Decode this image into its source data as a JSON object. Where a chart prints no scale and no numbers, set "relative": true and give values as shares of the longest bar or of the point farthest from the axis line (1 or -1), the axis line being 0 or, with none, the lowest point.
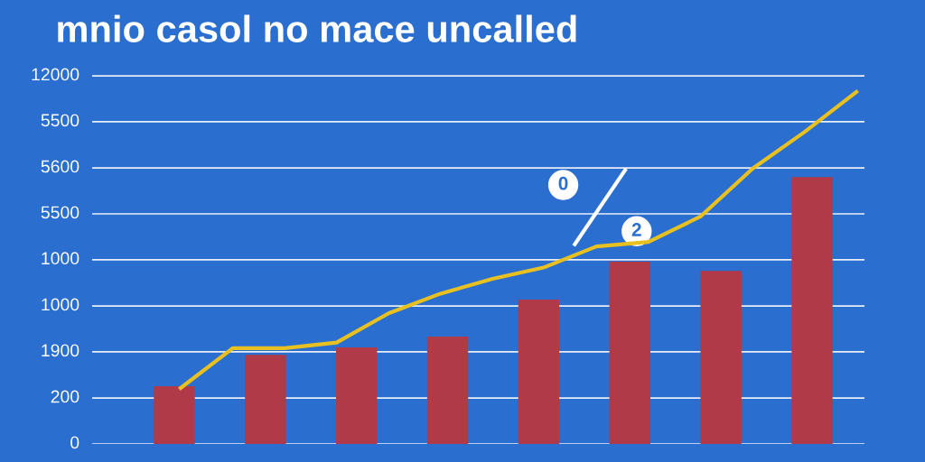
{
  "chart_data": [
    {
      "type": "bar",
      "title": "mnio casol no mace uncalled",
      "relative": true,
      "color": "#b03a48",
      "categories": [
        null,
        null,
        null,
        null,
        null,
        null,
        null,
        null
      ],
      "values": [
        0.216,
        0.334,
        0.362,
        0.402,
        0.541,
        0.683,
        0.648,
        1.0
      ],
      "ref_lines": [
        {
          "axis": "y",
          "value": 0,
          "color": "#e8eef8"
        },
        {
          "axis": "y",
          "value": 0.172,
          "color": "#e8eef8"
        },
        {
          "axis": "y",
          "value": 0.345,
          "color": "#e8eef8"
        },
        {
          "axis": "y",
          "value": 0.517,
          "color": "#e8eef8"
        },
        {
          "axis": "y",
          "value": 0.69,
          "color": "#e8eef8"
        },
        {
          "axis": "y",
          "value": 0.862,
          "color": "#e8eef8"
        },
        {
          "axis": "y",
          "value": 1.034,
          "color": "#e8eef8"
        },
        {
          "axis": "y",
          "value": 1.207,
          "color": "#e8eef8"
        },
        {
          "axis": "y",
          "value": 1.379,
          "color": "#e8eef8"
        }
      ],
      "annotations": [
        "0",
        "200",
        "1900",
        "1000",
        "1000",
        "5500",
        "5600",
        "5500",
        "12000",
        "0",
        "2"
      ]
    },
    {
      "type": "line",
      "relative": true,
      "color": "#e8c020",
      "categories": [
        null,
        null,
        null,
        null,
        null,
        null,
        null,
        null,
        null,
        null,
        null,
        null,
        null,
        null
      ],
      "values": [
        0.159,
        0.272,
        0.272,
        0.288,
        0.371,
        0.427,
        0.469,
        0.502,
        0.561,
        0.574,
        0.646,
        0.782,
        0.886,
        1.0
      ]
    }
  ]
}
